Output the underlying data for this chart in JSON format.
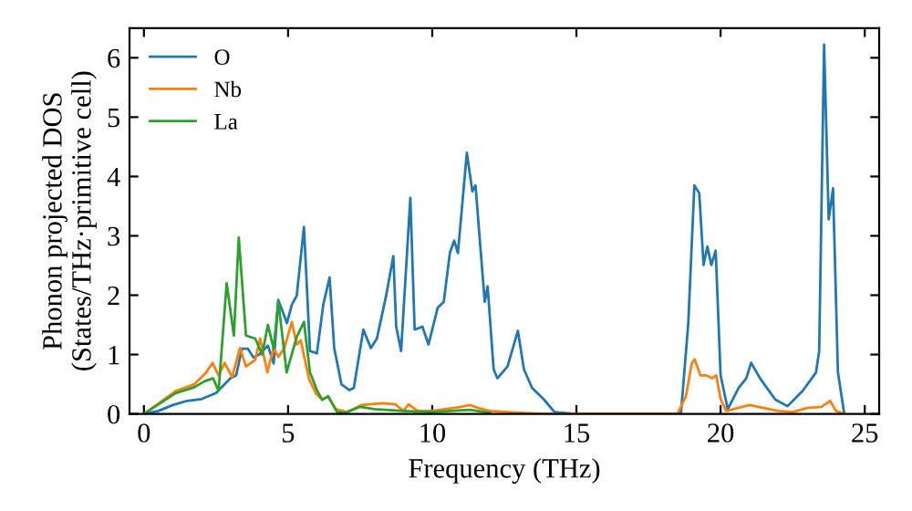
{
  "chart_data": {
    "type": "line",
    "xlabel": "Frequency (THz)",
    "ylabel": "Phonon projected DOS\n(States/THz·primitive cell)",
    "xlim": [
      -0.5,
      25.5
    ],
    "ylim": [
      0,
      6.5
    ],
    "xticks": [
      0,
      5,
      10,
      15,
      20,
      25
    ],
    "yticks": [
      0,
      1,
      2,
      3,
      4,
      5,
      6
    ],
    "legend": "top left",
    "grid": false,
    "marker": "none",
    "line_style": "solid",
    "series": [
      {
        "name": "O",
        "color": "#1f77b4",
        "x": [
          0,
          0.5,
          1,
          1.5,
          2,
          2.5,
          3,
          3.2,
          3.4,
          3.6,
          3.8,
          4,
          4.3,
          4.5,
          4.66,
          4.96,
          5.13,
          5.3,
          5.55,
          5.76,
          6.0,
          6.22,
          6.44,
          6.6,
          6.85,
          7.13,
          7.28,
          7.61,
          7.87,
          8.08,
          8.4,
          8.65,
          8.75,
          8.92,
          9.24,
          9.39,
          9.66,
          9.87,
          10.19,
          10.4,
          10.61,
          10.76,
          10.89,
          11.2,
          11.39,
          11.5,
          11.82,
          11.92,
          12.13,
          12.26,
          12.61,
          12.97,
          13.18,
          13.46,
          13.88,
          14.24,
          15,
          18.5,
          18.63,
          18.88,
          19.09,
          19.26,
          19.41,
          19.54,
          19.68,
          19.83,
          20.0,
          20.25,
          20.63,
          20.89,
          21.06,
          21.37,
          21.9,
          22.32,
          22.85,
          23.31,
          23.42,
          23.59,
          23.75,
          23.9,
          24.07,
          24.28
        ],
        "values": [
          0,
          0.05,
          0.15,
          0.22,
          0.25,
          0.35,
          0.6,
          0.65,
          1.1,
          1.1,
          0.95,
          1.0,
          1.15,
          0.85,
          1.92,
          1.53,
          1.84,
          1.99,
          3.15,
          1.06,
          1.02,
          1.84,
          2.3,
          1.11,
          0.5,
          0.4,
          0.44,
          1.42,
          1.11,
          1.27,
          1.99,
          2.66,
          1.47,
          1.06,
          3.64,
          1.42,
          1.47,
          1.17,
          1.79,
          1.89,
          2.71,
          2.92,
          2.71,
          4.4,
          3.75,
          3.85,
          1.89,
          2.15,
          0.75,
          0.6,
          0.8,
          1.4,
          0.75,
          0.44,
          0.24,
          0.03,
          0,
          0,
          0.03,
          1.53,
          3.85,
          3.72,
          2.51,
          2.82,
          2.51,
          2.75,
          0.65,
          0.08,
          0.44,
          0.6,
          0.86,
          0.6,
          0.24,
          0.13,
          0.39,
          0.7,
          1.06,
          6.22,
          3.28,
          3.8,
          0.7,
          0.03
        ]
      },
      {
        "name": "Nb",
        "color": "#ff7f0e",
        "x": [
          0,
          1.12,
          1.75,
          2.13,
          2.38,
          2.59,
          2.8,
          3.06,
          3.33,
          3.54,
          3.86,
          4.03,
          4.28,
          4.49,
          4.66,
          4.87,
          5.13,
          5.3,
          5.44,
          5.72,
          5.97,
          6.18,
          6.39,
          6.65,
          7.03,
          7.55,
          8.29,
          8.72,
          9.0,
          9.18,
          9.5,
          10,
          11,
          11.3,
          11.6,
          12,
          13,
          14,
          18.5,
          18.8,
          19.0,
          19.1,
          19.3,
          19.5,
          19.7,
          19.85,
          20.0,
          20.2,
          21,
          21.5,
          22,
          22.5,
          23,
          23.5,
          23.8,
          24.0,
          24.3
        ],
        "values": [
          0,
          0.39,
          0.5,
          0.68,
          0.86,
          0.65,
          0.86,
          0.62,
          1.11,
          0.8,
          0.91,
          1.27,
          0.7,
          1.11,
          0.96,
          1.11,
          1.55,
          1.17,
          1.24,
          0.6,
          0.34,
          0.24,
          0.29,
          0.08,
          0.03,
          0.15,
          0.18,
          0.16,
          0.05,
          0.16,
          0.05,
          0.05,
          0.12,
          0.15,
          0.1,
          0.05,
          0.02,
          0,
          0,
          0.3,
          0.85,
          0.92,
          0.65,
          0.65,
          0.6,
          0.65,
          0.25,
          0.05,
          0.15,
          0.1,
          0.05,
          0.03,
          0.1,
          0.12,
          0.22,
          0.05,
          0
        ]
      },
      {
        "name": "La",
        "color": "#2ca02c",
        "x": [
          0,
          1.1,
          1.75,
          2.1,
          2.4,
          2.59,
          2.87,
          3.12,
          3.29,
          3.54,
          3.86,
          4.1,
          4.3,
          4.5,
          4.66,
          4.95,
          5.3,
          5.55,
          5.76,
          6.0,
          6.18,
          6.39,
          6.7,
          7.0,
          7.5,
          8.0,
          9.0,
          10,
          11,
          11.3,
          12
        ],
        "values": [
          0,
          0.35,
          0.45,
          0.55,
          0.6,
          0.39,
          2.2,
          1.32,
          2.97,
          1.32,
          1.27,
          1.0,
          1.5,
          1.1,
          1.9,
          0.7,
          1.3,
          1.55,
          0.7,
          0.4,
          0.24,
          0.3,
          0.03,
          0.02,
          0.12,
          0.08,
          0.05,
          0.03,
          0.06,
          0.07,
          0.02
        ]
      }
    ]
  }
}
